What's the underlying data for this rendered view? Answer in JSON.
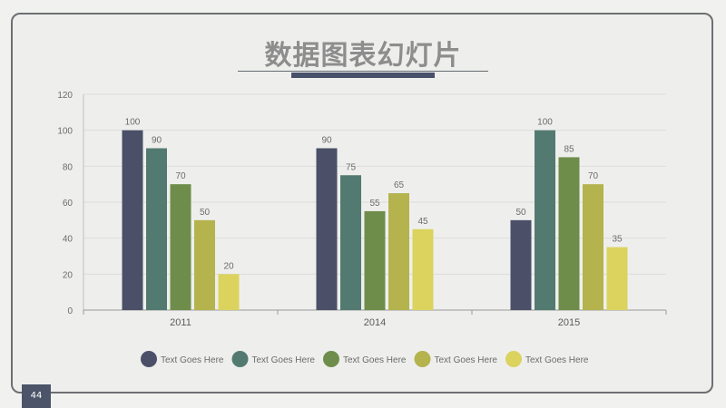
{
  "title": "数据图表幻灯片",
  "page_number": "44",
  "colors": [
    "#4b5068",
    "#537a71",
    "#6f8d4a",
    "#b4b34e",
    "#dbd35e"
  ],
  "chart_data": {
    "type": "bar",
    "categories": [
      "2011",
      "2014",
      "2015"
    ],
    "series": [
      {
        "name": "Text Goes Here",
        "values": [
          100,
          90,
          50
        ]
      },
      {
        "name": "Text Goes Here",
        "values": [
          90,
          75,
          100
        ]
      },
      {
        "name": "Text Goes Here",
        "values": [
          70,
          55,
          85
        ]
      },
      {
        "name": "Text Goes Here",
        "values": [
          50,
          65,
          70
        ]
      },
      {
        "name": "Text Goes Here",
        "values": [
          20,
          45,
          35
        ]
      }
    ],
    "ylim": [
      0,
      120
    ],
    "yticks": [
      0,
      20,
      40,
      60,
      80,
      100,
      120
    ],
    "grid": true,
    "legend": "bottom"
  }
}
